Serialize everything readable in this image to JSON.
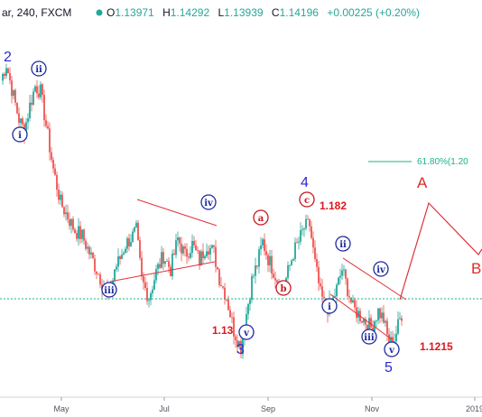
{
  "header": {
    "symbol_fragment": "ar, 240, FXCM",
    "open_label": "O",
    "open_value": "1.13971",
    "high_label": "H",
    "high_value": "1.14292",
    "low_label": "L",
    "low_value": "1.13939",
    "close_label": "C",
    "close_value": "1.14196",
    "change": "+0.00225 (+0.20%)"
  },
  "x_axis": {
    "labels": [
      "May",
      "Jul",
      "Sep",
      "Nov",
      "2019"
    ]
  },
  "annotations": {
    "waves_blue": [
      "2",
      "3",
      "4",
      "5"
    ],
    "waves_red": [
      "A",
      "B"
    ],
    "circled_blue": [
      "ii",
      "i",
      "iv",
      "iii",
      "v",
      "ii",
      "iv",
      "i",
      "iii",
      "v"
    ],
    "circled_red": [
      "a",
      "b",
      "c"
    ],
    "prices": [
      "1.13",
      "1.182",
      "1.1215"
    ],
    "fib_label": "61.80%(1.20"
  },
  "colors": {
    "up_candle": "#26a69a",
    "down_candle": "#ef5350",
    "wave_blue": "#2a2ad0",
    "wave_red": "#e02a2a",
    "fib_line": "#17b38b",
    "projection": "#e0303a"
  },
  "chart_data": {
    "type": "candlestick",
    "instrument": "FXCM",
    "timeframe": "240",
    "x_ticks": [
      "May",
      "Jul",
      "Sep",
      "Nov",
      "2019"
    ],
    "last_bar": {
      "open": 1.13971,
      "high": 1.14292,
      "low": 1.13939,
      "close": 1.14196,
      "change": "+0.00225 (+0.20%)"
    },
    "price_path": [
      [
        0,
        1.214
      ],
      [
        6,
        1.22
      ],
      [
        12,
        1.211
      ],
      [
        20,
        1.2
      ],
      [
        26,
        1.196
      ],
      [
        32,
        1.205
      ],
      [
        38,
        1.212
      ],
      [
        44,
        1.21
      ],
      [
        50,
        1.198
      ],
      [
        58,
        1.182
      ],
      [
        66,
        1.17
      ],
      [
        74,
        1.165
      ],
      [
        82,
        1.16
      ],
      [
        90,
        1.158
      ],
      [
        98,
        1.152
      ],
      [
        106,
        1.146
      ],
      [
        114,
        1.14
      ],
      [
        120,
        1.135
      ],
      [
        126,
        1.146
      ],
      [
        132,
        1.15
      ],
      [
        138,
        1.155
      ],
      [
        146,
        1.158
      ],
      [
        150,
        1.16
      ],
      [
        156,
        1.142
      ],
      [
        164,
        1.136
      ],
      [
        172,
        1.145
      ],
      [
        180,
        1.151
      ],
      [
        188,
        1.146
      ],
      [
        196,
        1.157
      ],
      [
        204,
        1.151
      ],
      [
        212,
        1.155
      ],
      [
        220,
        1.149
      ],
      [
        228,
        1.155
      ],
      [
        236,
        1.152
      ],
      [
        242,
        1.143
      ],
      [
        250,
        1.136
      ],
      [
        258,
        1.124
      ],
      [
        266,
        1.118
      ],
      [
        272,
        1.13
      ],
      [
        278,
        1.142
      ],
      [
        284,
        1.148
      ],
      [
        290,
        1.156
      ],
      [
        296,
        1.15
      ],
      [
        304,
        1.144
      ],
      [
        312,
        1.138
      ],
      [
        318,
        1.145
      ],
      [
        324,
        1.152
      ],
      [
        330,
        1.156
      ],
      [
        336,
        1.161
      ],
      [
        342,
        1.162
      ],
      [
        348,
        1.148
      ],
      [
        354,
        1.137
      ],
      [
        360,
        1.132
      ],
      [
        366,
        1.133
      ],
      [
        372,
        1.139
      ],
      [
        378,
        1.146
      ],
      [
        384,
        1.139
      ],
      [
        390,
        1.132
      ],
      [
        396,
        1.13
      ],
      [
        402,
        1.128
      ],
      [
        410,
        1.125
      ],
      [
        418,
        1.131
      ],
      [
        424,
        1.128
      ],
      [
        430,
        1.119
      ],
      [
        436,
        1.121
      ],
      [
        442,
        1.128
      ],
      [
        446,
        1.132
      ]
    ]
  }
}
